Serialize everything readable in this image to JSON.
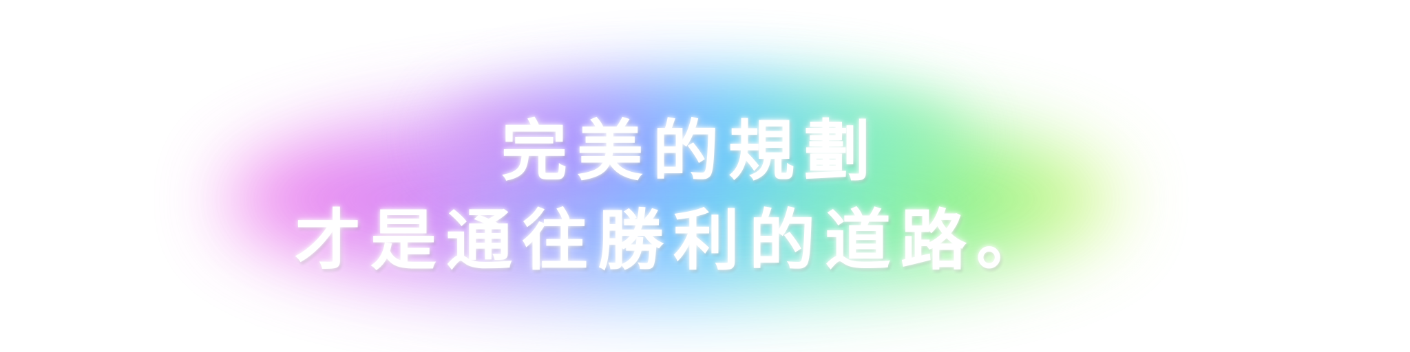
{
  "text": {
    "line1": "完美的規劃",
    "line2": "才是通往勝利的道路。"
  },
  "colors": {
    "background": "#ffffff",
    "text": "#ffffff",
    "glow_gradient": [
      "#f06ce8",
      "#b07cf7",
      "#5fb8ff",
      "#6ee8c8",
      "#7ef07e",
      "#d8f870"
    ]
  }
}
